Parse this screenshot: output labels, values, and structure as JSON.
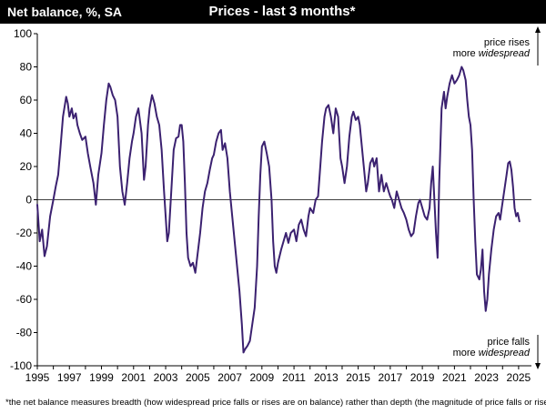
{
  "header": {
    "ylabel": "Net balance, %, SA",
    "title": "Prices - last 3 months*"
  },
  "annotations": {
    "top_line1": "price rises",
    "top_line2_prefix": "more ",
    "top_line2_emph": "widespread",
    "bottom_line1": "price falls",
    "bottom_line2_prefix": "more ",
    "bottom_line2_emph": "widespread"
  },
  "footnote": "*the net balance measures breadth (how widespread price falls or rises are on balance)  rather than depth (the magnitude of price falls or rises).",
  "colors": {
    "series": "#3b2170",
    "axis": "#000000",
    "header_bg": "#000000"
  },
  "chart_data": {
    "type": "line",
    "title": "Prices - last 3 months*",
    "ylabel": "Net balance, %, SA",
    "xlabel": "",
    "xlim": [
      1995,
      2025.8
    ],
    "ylim": [
      -100,
      100
    ],
    "y_ticks": [
      100,
      80,
      60,
      40,
      20,
      0,
      -20,
      -40,
      -60,
      -80,
      -100
    ],
    "x_ticks": [
      1995,
      1997,
      1999,
      2001,
      2003,
      2005,
      2007,
      2009,
      2011,
      2013,
      2015,
      2017,
      2019,
      2021,
      2023,
      2025
    ],
    "grid": false,
    "legend": "none",
    "series": [
      {
        "points": [
          [
            1995.0,
            -3
          ],
          [
            1995.15,
            -25
          ],
          [
            1995.3,
            -18
          ],
          [
            1995.45,
            -34
          ],
          [
            1995.6,
            -28
          ],
          [
            1995.8,
            -10
          ],
          [
            1996.0,
            0
          ],
          [
            1996.15,
            8
          ],
          [
            1996.3,
            15
          ],
          [
            1996.45,
            32
          ],
          [
            1996.6,
            50
          ],
          [
            1996.8,
            62
          ],
          [
            1996.9,
            58
          ],
          [
            1997.0,
            50
          ],
          [
            1997.15,
            55
          ],
          [
            1997.25,
            49
          ],
          [
            1997.4,
            52
          ],
          [
            1997.5,
            45
          ],
          [
            1997.65,
            40
          ],
          [
            1997.8,
            36
          ],
          [
            1998.0,
            38
          ],
          [
            1998.15,
            28
          ],
          [
            1998.3,
            20
          ],
          [
            1998.5,
            10
          ],
          [
            1998.65,
            -3
          ],
          [
            1998.8,
            15
          ],
          [
            1999.0,
            28
          ],
          [
            1999.15,
            45
          ],
          [
            1999.3,
            60
          ],
          [
            1999.45,
            70
          ],
          [
            1999.55,
            68
          ],
          [
            1999.7,
            63
          ],
          [
            1999.85,
            60
          ],
          [
            2000.0,
            50
          ],
          [
            2000.15,
            20
          ],
          [
            2000.3,
            5
          ],
          [
            2000.45,
            -3
          ],
          [
            2000.6,
            10
          ],
          [
            2000.75,
            25
          ],
          [
            2000.9,
            35
          ],
          [
            2001.0,
            40
          ],
          [
            2001.15,
            50
          ],
          [
            2001.3,
            55
          ],
          [
            2001.5,
            40
          ],
          [
            2001.65,
            12
          ],
          [
            2001.75,
            20
          ],
          [
            2001.9,
            45
          ],
          [
            2002.0,
            55
          ],
          [
            2002.15,
            63
          ],
          [
            2002.3,
            58
          ],
          [
            2002.45,
            50
          ],
          [
            2002.6,
            45
          ],
          [
            2002.75,
            30
          ],
          [
            2002.9,
            5
          ],
          [
            2003.0,
            -10
          ],
          [
            2003.1,
            -25
          ],
          [
            2003.2,
            -20
          ],
          [
            2003.35,
            5
          ],
          [
            2003.5,
            30
          ],
          [
            2003.65,
            37
          ],
          [
            2003.8,
            38
          ],
          [
            2003.9,
            45
          ],
          [
            2004.0,
            45
          ],
          [
            2004.1,
            35
          ],
          [
            2004.2,
            10
          ],
          [
            2004.3,
            -20
          ],
          [
            2004.4,
            -35
          ],
          [
            2004.55,
            -40
          ],
          [
            2004.7,
            -38
          ],
          [
            2004.85,
            -44
          ],
          [
            2005.0,
            -32
          ],
          [
            2005.15,
            -20
          ],
          [
            2005.3,
            -5
          ],
          [
            2005.45,
            5
          ],
          [
            2005.6,
            10
          ],
          [
            2005.75,
            18
          ],
          [
            2005.9,
            25
          ],
          [
            2006.0,
            27
          ],
          [
            2006.15,
            35
          ],
          [
            2006.3,
            40
          ],
          [
            2006.45,
            42
          ],
          [
            2006.55,
            30
          ],
          [
            2006.7,
            34
          ],
          [
            2006.85,
            25
          ],
          [
            2007.0,
            5
          ],
          [
            2007.15,
            -10
          ],
          [
            2007.3,
            -25
          ],
          [
            2007.45,
            -40
          ],
          [
            2007.6,
            -55
          ],
          [
            2007.75,
            -75
          ],
          [
            2007.85,
            -92
          ],
          [
            2007.95,
            -90
          ],
          [
            2008.1,
            -88
          ],
          [
            2008.25,
            -85
          ],
          [
            2008.4,
            -75
          ],
          [
            2008.55,
            -65
          ],
          [
            2008.7,
            -40
          ],
          [
            2008.8,
            -10
          ],
          [
            2008.9,
            15
          ],
          [
            2009.0,
            32
          ],
          [
            2009.15,
            35
          ],
          [
            2009.3,
            28
          ],
          [
            2009.45,
            20
          ],
          [
            2009.6,
            0
          ],
          [
            2009.7,
            -25
          ],
          [
            2009.8,
            -40
          ],
          [
            2009.9,
            -44
          ],
          [
            2010.0,
            -38
          ],
          [
            2010.2,
            -30
          ],
          [
            2010.35,
            -25
          ],
          [
            2010.5,
            -20
          ],
          [
            2010.65,
            -26
          ],
          [
            2010.8,
            -20
          ],
          [
            2011.0,
            -18
          ],
          [
            2011.15,
            -25
          ],
          [
            2011.3,
            -15
          ],
          [
            2011.45,
            -12
          ],
          [
            2011.6,
            -18
          ],
          [
            2011.75,
            -22
          ],
          [
            2011.9,
            -10
          ],
          [
            2012.0,
            -5
          ],
          [
            2012.2,
            -8
          ],
          [
            2012.35,
            0
          ],
          [
            2012.5,
            2
          ],
          [
            2012.6,
            15
          ],
          [
            2012.75,
            35
          ],
          [
            2012.9,
            50
          ],
          [
            2013.0,
            55
          ],
          [
            2013.15,
            57
          ],
          [
            2013.3,
            50
          ],
          [
            2013.45,
            40
          ],
          [
            2013.6,
            55
          ],
          [
            2013.75,
            50
          ],
          [
            2013.9,
            25
          ],
          [
            2014.0,
            20
          ],
          [
            2014.15,
            10
          ],
          [
            2014.3,
            20
          ],
          [
            2014.45,
            38
          ],
          [
            2014.6,
            50
          ],
          [
            2014.7,
            53
          ],
          [
            2014.85,
            48
          ],
          [
            2015.0,
            50
          ],
          [
            2015.1,
            45
          ],
          [
            2015.25,
            30
          ],
          [
            2015.4,
            15
          ],
          [
            2015.5,
            5
          ],
          [
            2015.6,
            10
          ],
          [
            2015.75,
            22
          ],
          [
            2015.9,
            25
          ],
          [
            2016.0,
            20
          ],
          [
            2016.15,
            25
          ],
          [
            2016.3,
            5
          ],
          [
            2016.45,
            15
          ],
          [
            2016.6,
            5
          ],
          [
            2016.75,
            10
          ],
          [
            2016.9,
            5
          ],
          [
            2017.0,
            2
          ],
          [
            2017.1,
            0
          ],
          [
            2017.25,
            -5
          ],
          [
            2017.4,
            5
          ],
          [
            2017.55,
            0
          ],
          [
            2017.7,
            -5
          ],
          [
            2017.85,
            -8
          ],
          [
            2018.0,
            -12
          ],
          [
            2018.15,
            -18
          ],
          [
            2018.3,
            -22
          ],
          [
            2018.45,
            -20
          ],
          [
            2018.6,
            -10
          ],
          [
            2018.75,
            -2
          ],
          [
            2018.85,
            0
          ],
          [
            2019.0,
            -5
          ],
          [
            2019.15,
            -10
          ],
          [
            2019.3,
            -12
          ],
          [
            2019.45,
            -5
          ],
          [
            2019.55,
            10
          ],
          [
            2019.65,
            20
          ],
          [
            2019.75,
            0
          ],
          [
            2019.85,
            -20
          ],
          [
            2019.95,
            -35
          ],
          [
            2020.05,
            10
          ],
          [
            2020.2,
            55
          ],
          [
            2020.35,
            65
          ],
          [
            2020.45,
            55
          ],
          [
            2020.55,
            62
          ],
          [
            2020.7,
            70
          ],
          [
            2020.85,
            75
          ],
          [
            2021.0,
            70
          ],
          [
            2021.15,
            72
          ],
          [
            2021.3,
            75
          ],
          [
            2021.45,
            80
          ],
          [
            2021.55,
            78
          ],
          [
            2021.7,
            72
          ],
          [
            2021.8,
            60
          ],
          [
            2021.9,
            50
          ],
          [
            2022.0,
            45
          ],
          [
            2022.1,
            30
          ],
          [
            2022.2,
            0
          ],
          [
            2022.3,
            -25
          ],
          [
            2022.4,
            -45
          ],
          [
            2022.55,
            -48
          ],
          [
            2022.65,
            -42
          ],
          [
            2022.75,
            -30
          ],
          [
            2022.85,
            -55
          ],
          [
            2022.95,
            -67
          ],
          [
            2023.05,
            -60
          ],
          [
            2023.15,
            -45
          ],
          [
            2023.3,
            -30
          ],
          [
            2023.45,
            -18
          ],
          [
            2023.6,
            -10
          ],
          [
            2023.75,
            -8
          ],
          [
            2023.85,
            -12
          ],
          [
            2023.95,
            -5
          ],
          [
            2024.1,
            5
          ],
          [
            2024.25,
            15
          ],
          [
            2024.35,
            22
          ],
          [
            2024.45,
            23
          ],
          [
            2024.55,
            18
          ],
          [
            2024.65,
            8
          ],
          [
            2024.75,
            -5
          ],
          [
            2024.85,
            -10
          ],
          [
            2024.95,
            -8
          ],
          [
            2025.05,
            -13
          ]
        ]
      }
    ]
  }
}
